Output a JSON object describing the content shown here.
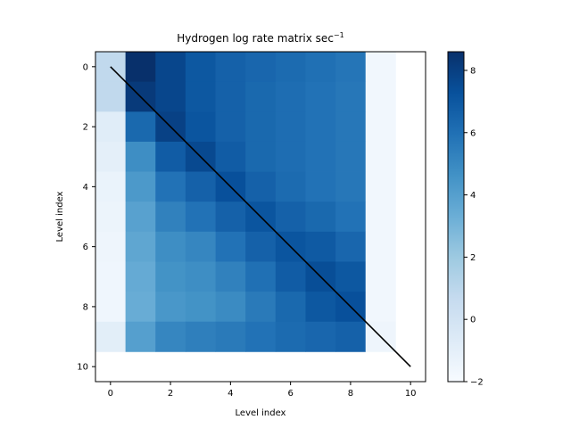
{
  "chart_data": {
    "type": "heatmap",
    "title": "Hydrogen log rate matrix sec",
    "title_superscript": "−1",
    "xlabel": "Level index",
    "ylabel": "Level index",
    "xlim": [
      -0.5,
      10.5
    ],
    "ylim": [
      10.5,
      -0.5
    ],
    "x_ticks": [
      0,
      2,
      4,
      6,
      8,
      10
    ],
    "y_ticks": [
      0,
      2,
      4,
      6,
      8,
      10
    ],
    "colormap": "Blues",
    "colorbar": {
      "min": -2,
      "max": 8.6,
      "ticks": [
        -2,
        0,
        2,
        4,
        6,
        8
      ]
    },
    "grid": false,
    "diagonal_line": {
      "from": [
        0,
        0
      ],
      "to": [
        10,
        10
      ],
      "color": "#000000"
    },
    "matrix": [
      [
        0.8,
        8.6,
        7.7,
        7.0,
        6.6,
        6.4,
        6.2,
        6.0,
        5.8,
        -1.7,
        null
      ],
      [
        0.8,
        8.2,
        7.7,
        7.0,
        6.6,
        6.3,
        6.1,
        5.9,
        5.7,
        -1.7,
        null
      ],
      [
        -0.8,
        6.3,
        7.9,
        7.1,
        6.6,
        6.3,
        6.1,
        5.9,
        5.7,
        -1.7,
        null
      ],
      [
        -1.0,
        4.8,
        6.8,
        7.6,
        6.8,
        6.3,
        6.1,
        5.9,
        5.7,
        -1.7,
        null
      ],
      [
        -1.3,
        4.3,
        5.9,
        6.6,
        7.3,
        6.6,
        6.2,
        5.9,
        5.7,
        -1.7,
        null
      ],
      [
        -1.4,
        3.9,
        5.3,
        5.9,
        6.6,
        7.1,
        6.6,
        6.3,
        5.9,
        -1.7,
        null
      ],
      [
        -1.5,
        3.7,
        4.8,
        5.1,
        5.9,
        6.6,
        7.1,
        6.9,
        6.4,
        -1.7,
        null
      ],
      [
        -1.6,
        3.5,
        4.6,
        4.8,
        5.3,
        6.0,
        6.8,
        7.4,
        7.0,
        -1.7,
        null
      ],
      [
        -1.6,
        3.4,
        4.4,
        4.6,
        4.9,
        5.6,
        6.3,
        7.0,
        7.3,
        -1.7,
        null
      ],
      [
        -0.9,
        4.0,
        5.1,
        5.4,
        5.6,
        5.9,
        6.2,
        6.4,
        6.6,
        -1.5,
        null
      ],
      [
        null,
        null,
        null,
        null,
        null,
        null,
        null,
        null,
        null,
        null,
        null
      ]
    ]
  }
}
